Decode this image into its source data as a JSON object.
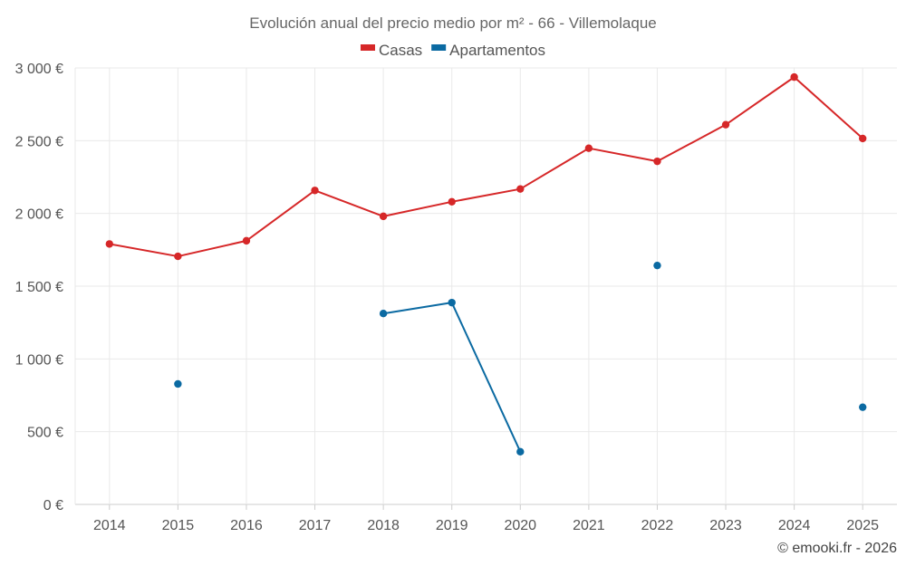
{
  "chart_data": {
    "type": "line",
    "title": "Evolución anual del precio medio por m² - 66 - Villemolaque",
    "categories": [
      "2014",
      "2015",
      "2016",
      "2017",
      "2018",
      "2019",
      "2020",
      "2021",
      "2022",
      "2023",
      "2024",
      "2025"
    ],
    "series": [
      {
        "name": "Casas",
        "color": "#d62728",
        "values": [
          1790,
          1705,
          1812,
          2158,
          1980,
          2080,
          2168,
          2448,
          2358,
          2610,
          2937,
          2515
        ]
      },
      {
        "name": "Apartamentos",
        "color": "#0b6aa2",
        "values": [
          null,
          828,
          null,
          null,
          1312,
          1387,
          362,
          null,
          1642,
          null,
          null,
          668
        ]
      }
    ],
    "ylim": [
      0,
      3000
    ],
    "yticks": [
      0,
      500,
      1000,
      1500,
      2000,
      2500,
      3000
    ],
    "ytick_labels": [
      "0 €",
      "500 €",
      "1 000 €",
      "1 500 €",
      "2 000 €",
      "2 500 €",
      "3 000 €"
    ],
    "xlabel": "",
    "ylabel": "",
    "legend_position": "top-center",
    "grid": true
  },
  "credit": "© emooki.fr - 2026"
}
